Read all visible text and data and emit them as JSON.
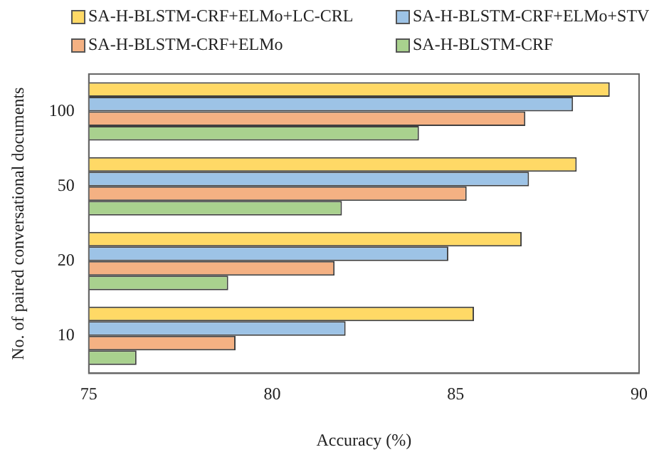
{
  "chart_data": {
    "type": "bar",
    "orientation": "horizontal",
    "xlabel": "Accuracy (%)",
    "ylabel": "No. of paired conversational documents",
    "categories": [
      "100",
      "50",
      "20",
      "10"
    ],
    "xlim": [
      75,
      90
    ],
    "xticks": [
      75,
      80,
      85,
      90
    ],
    "grid": false,
    "legend": "top",
    "series": [
      {
        "name": "SA-H-BLSTM-CRF+ELMo+LC-CRL",
        "color": "#ffd966",
        "values": [
          89.2,
          88.3,
          86.8,
          85.5
        ]
      },
      {
        "name": "SA-H-BLSTM-CRF+ELMo+STV",
        "color": "#9dc3e6",
        "values": [
          88.2,
          87.0,
          84.8,
          82.0
        ]
      },
      {
        "name": "SA-H-BLSTM-CRF+ELMo",
        "color": "#f4b183",
        "values": [
          86.9,
          85.3,
          81.7,
          79.0
        ]
      },
      {
        "name": "SA-H-BLSTM-CRF",
        "color": "#a9d18e",
        "values": [
          84.0,
          81.9,
          78.8,
          76.3
        ]
      }
    ]
  }
}
